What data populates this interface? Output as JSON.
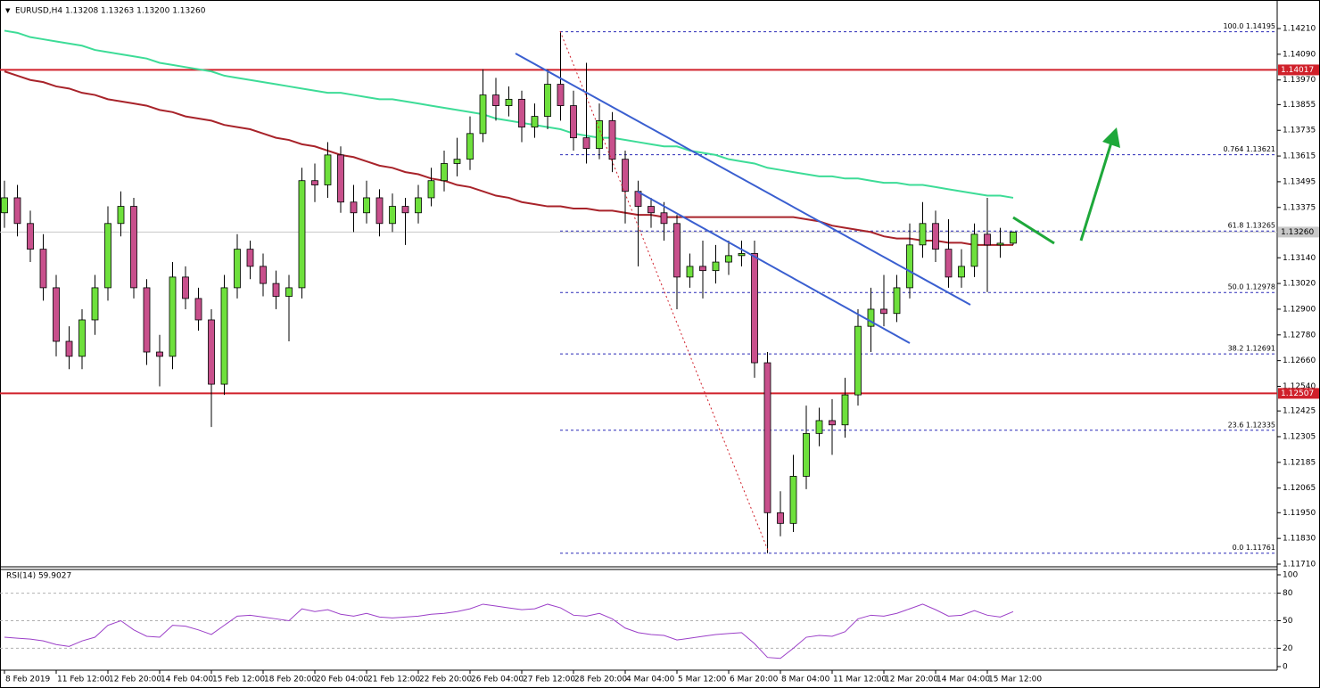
{
  "chart_data": [
    {
      "type": "candlestick",
      "title": "EURUSD,H4  1.13208 1.13263 1.13200 1.13260",
      "categories": [
        "8 Feb 2019",
        null,
        null,
        null,
        "11 Feb 12:00",
        null,
        null,
        null,
        "12 Feb 20:00",
        null,
        null,
        null,
        "14 Feb 04:00",
        null,
        null,
        null,
        "15 Feb 12:00",
        null,
        null,
        null,
        "18 Feb 20:00",
        null,
        null,
        null,
        "20 Feb 04:00",
        null,
        null,
        null,
        "21 Feb 12:00",
        null,
        null,
        null,
        "22 Feb 20:00",
        null,
        null,
        null,
        "26 Feb 04:00",
        null,
        null,
        null,
        "27 Feb 12:00",
        null,
        null,
        null,
        "28 Feb 20:00",
        null,
        null,
        null,
        "4 Mar 04:00",
        null,
        null,
        null,
        "5 Mar 12:00",
        null,
        null,
        null,
        "6 Mar 20:00",
        null,
        null,
        null,
        "8 Mar 04:00",
        null,
        null,
        null,
        "11 Mar 12:00",
        null,
        null,
        null,
        "12 Mar 20:00",
        null,
        null,
        null,
        "14 Mar 04:00",
        null,
        null,
        null,
        "15 Mar 12:00",
        null,
        null
      ],
      "open": [
        1.1335,
        1.1342,
        1.133,
        1.1318,
        1.13,
        1.1275,
        1.1268,
        1.1285,
        1.13,
        1.133,
        1.1338,
        1.13,
        1.127,
        1.1268,
        1.1305,
        1.1295,
        1.1285,
        1.1255,
        1.13,
        1.1318,
        1.131,
        1.1302,
        1.1296,
        1.13,
        1.135,
        1.1348,
        1.1362,
        1.134,
        1.1335,
        1.1342,
        1.133,
        1.1338,
        1.1335,
        1.1342,
        1.135,
        1.1358,
        1.136,
        1.1372,
        1.139,
        1.1385,
        1.1388,
        1.1375,
        1.138,
        1.1395,
        1.1385,
        1.137,
        1.1365,
        1.1378,
        1.136,
        1.1345,
        1.1338,
        1.1335,
        1.133,
        1.1305,
        1.131,
        1.1308,
        1.1312,
        1.1315,
        1.1316,
        1.1265,
        1.1195,
        1.119,
        1.1212,
        1.1232,
        1.1238,
        1.1236,
        1.125,
        1.1282,
        1.129,
        1.1288,
        1.13,
        1.132,
        1.133,
        1.1318,
        1.1305,
        1.131,
        1.1325,
        1.132,
        1.13208
      ],
      "high": [
        1.135,
        1.1348,
        1.1336,
        1.1325,
        1.1306,
        1.1282,
        1.129,
        1.1306,
        1.1338,
        1.1345,
        1.1342,
        1.1304,
        1.1278,
        1.1312,
        1.131,
        1.13,
        1.129,
        1.1306,
        1.1325,
        1.1322,
        1.1316,
        1.1308,
        1.1306,
        1.1356,
        1.1358,
        1.1368,
        1.1366,
        1.1348,
        1.135,
        1.1346,
        1.1344,
        1.1342,
        1.1348,
        1.1356,
        1.1364,
        1.137,
        1.138,
        1.1402,
        1.1398,
        1.1394,
        1.1392,
        1.1386,
        1.1402,
        1.14195,
        1.1392,
        1.1405,
        1.1386,
        1.1382,
        1.1364,
        1.135,
        1.1342,
        1.134,
        1.1334,
        1.1316,
        1.1322,
        1.132,
        1.1322,
        1.1322,
        1.1322,
        1.127,
        1.1205,
        1.1222,
        1.1245,
        1.1244,
        1.1248,
        1.1258,
        1.129,
        1.13,
        1.1306,
        1.1306,
        1.133,
        1.134,
        1.1336,
        1.1332,
        1.1318,
        1.133,
        1.1342,
        1.1328,
        1.13263
      ],
      "low": [
        1.1328,
        1.1324,
        1.1312,
        1.1294,
        1.1268,
        1.1262,
        1.1262,
        1.1278,
        1.1294,
        1.1324,
        1.1295,
        1.1264,
        1.1254,
        1.1262,
        1.129,
        1.128,
        1.1235,
        1.125,
        1.1295,
        1.1304,
        1.1296,
        1.129,
        1.1275,
        1.1295,
        1.134,
        1.1342,
        1.1335,
        1.1326,
        1.133,
        1.1324,
        1.1326,
        1.132,
        1.133,
        1.1338,
        1.1345,
        1.1352,
        1.1355,
        1.1368,
        1.1378,
        1.138,
        1.1368,
        1.137,
        1.1374,
        1.1378,
        1.1364,
        1.1358,
        1.136,
        1.1354,
        1.133,
        1.131,
        1.1328,
        1.1322,
        1.129,
        1.13,
        1.1295,
        1.1302,
        1.1306,
        1.131,
        1.1258,
        1.11761,
        1.1184,
        1.1186,
        1.1206,
        1.1226,
        1.1222,
        1.123,
        1.1245,
        1.127,
        1.1282,
        1.1284,
        1.1295,
        1.1314,
        1.1312,
        1.13,
        1.13,
        1.1305,
        1.1298,
        1.1314,
        1.132
      ],
      "close": [
        1.1342,
        1.133,
        1.1318,
        1.13,
        1.1275,
        1.1268,
        1.1285,
        1.13,
        1.133,
        1.1338,
        1.13,
        1.127,
        1.1268,
        1.1305,
        1.1295,
        1.1285,
        1.1255,
        1.13,
        1.1318,
        1.131,
        1.1302,
        1.1296,
        1.13,
        1.135,
        1.1348,
        1.1362,
        1.134,
        1.1335,
        1.1342,
        1.133,
        1.1338,
        1.1335,
        1.1342,
        1.135,
        1.1358,
        1.136,
        1.1372,
        1.139,
        1.1385,
        1.1388,
        1.1375,
        1.138,
        1.1395,
        1.1385,
        1.137,
        1.1365,
        1.1378,
        1.136,
        1.1345,
        1.1338,
        1.1335,
        1.133,
        1.1305,
        1.131,
        1.1308,
        1.1312,
        1.1315,
        1.1316,
        1.1265,
        1.1195,
        1.119,
        1.1212,
        1.1232,
        1.1238,
        1.1236,
        1.125,
        1.1282,
        1.129,
        1.1288,
        1.13,
        1.132,
        1.133,
        1.1318,
        1.1305,
        1.131,
        1.1325,
        1.132,
        1.13208,
        1.1326
      ],
      "up_color": "#6ee03c",
      "down_color": "#c8508c",
      "series": [
        {
          "color": "#3ddc97",
          "values": [
            1.142,
            1.1419,
            1.1417,
            1.1416,
            1.1415,
            1.1414,
            1.1413,
            1.1411,
            1.141,
            1.1409,
            1.1408,
            1.1407,
            1.1405,
            1.1404,
            1.1403,
            1.1402,
            1.1401,
            1.1399,
            1.1398,
            1.1397,
            1.1396,
            1.1395,
            1.1394,
            1.1393,
            1.1392,
            1.1391,
            1.1391,
            1.139,
            1.1389,
            1.1388,
            1.1388,
            1.1387,
            1.1386,
            1.1385,
            1.1384,
            1.1383,
            1.1382,
            1.1381,
            1.1379,
            1.1378,
            1.1377,
            1.1376,
            1.1375,
            1.1374,
            1.1372,
            1.1371,
            1.137,
            1.137,
            1.1369,
            1.1368,
            1.1367,
            1.1366,
            1.1366,
            1.1364,
            1.1363,
            1.1362,
            1.136,
            1.1359,
            1.1358,
            1.1356,
            1.1355,
            1.1354,
            1.1353,
            1.1352,
            1.1352,
            1.1351,
            1.1351,
            1.135,
            1.1349,
            1.1349,
            1.1348,
            1.1348,
            1.1347,
            1.1346,
            1.1345,
            1.1344,
            1.1343,
            1.1343,
            1.1342
          ]
        },
        {
          "color": "#a8232a",
          "values": [
            1.1401,
            1.1399,
            1.1397,
            1.1396,
            1.1394,
            1.1393,
            1.1391,
            1.139,
            1.1388,
            1.1387,
            1.1386,
            1.1385,
            1.1383,
            1.1382,
            1.138,
            1.1379,
            1.1378,
            1.1376,
            1.1375,
            1.1374,
            1.1372,
            1.137,
            1.1369,
            1.1367,
            1.1366,
            1.1364,
            1.1362,
            1.1361,
            1.1359,
            1.1357,
            1.1356,
            1.1354,
            1.1353,
            1.1351,
            1.135,
            1.1348,
            1.1347,
            1.1345,
            1.1343,
            1.1342,
            1.134,
            1.1339,
            1.1338,
            1.1338,
            1.1337,
            1.1337,
            1.1336,
            1.1336,
            1.1335,
            1.1334,
            1.1334,
            1.1333,
            1.1333,
            1.1333,
            1.1333,
            1.1333,
            1.1333,
            1.1333,
            1.1333,
            1.1333,
            1.1333,
            1.1333,
            1.1332,
            1.1331,
            1.1329,
            1.1328,
            1.1327,
            1.1326,
            1.1324,
            1.1323,
            1.1323,
            1.1322,
            1.1322,
            1.1321,
            1.1321,
            1.132,
            1.132,
            1.132,
            1.132
          ]
        }
      ],
      "ylim": [
        1.1171,
        1.1431
      ],
      "yticks": [
        {
          "value": 1.1421,
          "label": "1.14210"
        },
        {
          "value": 1.1409,
          "label": "1.14090"
        },
        {
          "value": 1.1397,
          "label": "1.13970"
        },
        1.13855,
        1.13735,
        1.13615,
        1.13495,
        1.13375,
        {
          "value": 1.1314,
          "label": "1.13140"
        },
        {
          "value": 1.1302,
          "label": "1.13020"
        },
        {
          "value": 1.129,
          "label": "1.12900"
        },
        {
          "value": 1.1278,
          "label": "1.12780"
        },
        {
          "value": 1.1266,
          "label": "1.12660"
        },
        {
          "value": 1.1254,
          "label": "1.12540"
        },
        1.12425,
        1.12305,
        1.12185,
        1.12065,
        {
          "value": 1.1195,
          "label": "1.11950"
        },
        {
          "value": 1.1183,
          "label": "1.11830"
        },
        {
          "value": 1.1171,
          "label": "1.11710"
        }
      ],
      "hlines": [
        {
          "value": 1.14017,
          "color": "#d0202a"
        },
        {
          "value": 1.12507,
          "color": "#d0202a"
        }
      ],
      "last_price": {
        "value": 1.1326,
        "label": "1.13260"
      },
      "fib_levels": [
        {
          "value": 1.14195,
          "label": "100.0 1.14195"
        },
        {
          "value": 1.13621,
          "label": "0.764 1.13621"
        },
        {
          "value": 1.13265,
          "label": "61.8 1.13265"
        },
        {
          "value": 1.12978,
          "label": "50.0 1.12978"
        },
        {
          "value": 1.12691,
          "label": "38.2 1.12691"
        },
        {
          "value": 1.12335,
          "label": "23.6 1.12335"
        },
        {
          "value": 1.11761,
          "label": "0.0 1.11761"
        }
      ],
      "fib_color": "#2a2ab8"
    },
    {
      "type": "line",
      "title": "RSI(14) 59.9027",
      "color": "#9b3fc8",
      "values": [
        32,
        31,
        30,
        28,
        24,
        22,
        28,
        32,
        45,
        50,
        40,
        33,
        32,
        45,
        44,
        40,
        35,
        45,
        55,
        56,
        54,
        52,
        50,
        63,
        60,
        62,
        57,
        55,
        58,
        54,
        53,
        54,
        55,
        57,
        58,
        60,
        63,
        68,
        66,
        64,
        62,
        63,
        68,
        64,
        56,
        55,
        58,
        52,
        42,
        37,
        35,
        34,
        29,
        31,
        33,
        35,
        36,
        37,
        25,
        10,
        9,
        20,
        32,
        34,
        33,
        38,
        52,
        56,
        55,
        58,
        63,
        68,
        62,
        55,
        56,
        61,
        56,
        54,
        59.9027
      ],
      "ylim": [
        0,
        100
      ],
      "yticks": [
        0,
        20,
        50,
        80,
        100
      ]
    }
  ]
}
